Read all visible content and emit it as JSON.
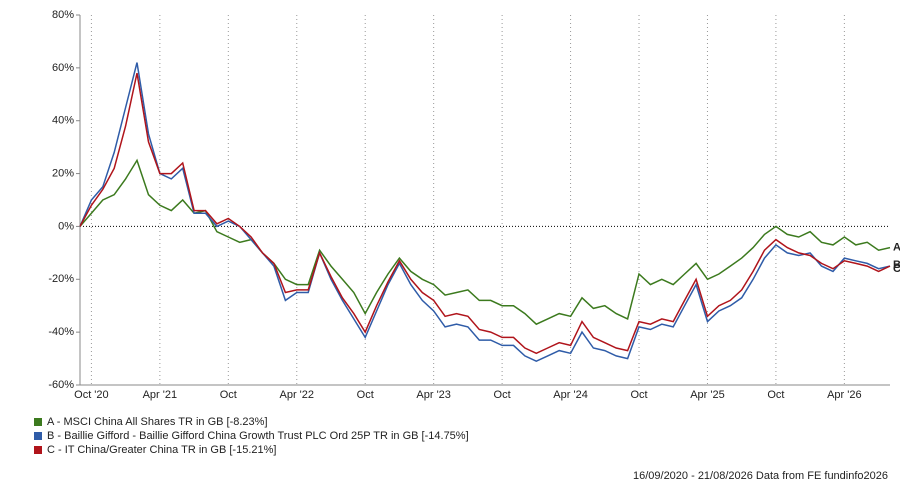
{
  "chart_data": {
    "type": "line",
    "categories": [
      null,
      "Oct '20",
      null,
      null,
      null,
      null,
      null,
      "Apr '21",
      null,
      null,
      null,
      null,
      null,
      "Oct",
      null,
      null,
      null,
      null,
      null,
      "Apr '22",
      null,
      null,
      null,
      null,
      null,
      "Oct",
      null,
      null,
      null,
      null,
      null,
      "Apr '23",
      null,
      null,
      null,
      null,
      null,
      "Oct",
      null,
      null,
      null,
      null,
      null,
      "Apr '24",
      null,
      null,
      null,
      null,
      null,
      "Oct",
      null,
      null,
      null,
      null,
      null,
      "Apr '25",
      null,
      null,
      null,
      null,
      null,
      "Oct",
      null,
      null,
      null,
      null,
      null,
      "Apr '26",
      null,
      null,
      null,
      null
    ],
    "series": [
      {
        "name": "A - MSCI China All Shares TR in GB [-8.23%]",
        "end_label": "A",
        "color": "#3c7a1e",
        "values": [
          0,
          5,
          10,
          12,
          18,
          25,
          12,
          8,
          6,
          10,
          5,
          6,
          -2,
          -4,
          -6,
          -5,
          -10,
          -14,
          -20,
          -22,
          -22,
          -9,
          -15,
          -20,
          -25,
          -33,
          -25,
          -18,
          -12,
          -17,
          -20,
          -22,
          -26,
          -25,
          -24,
          -28,
          -28,
          -30,
          -30,
          -33,
          -37,
          -35,
          -33,
          -34,
          -27,
          -31,
          -30,
          -33,
          -35,
          -18,
          -22,
          -20,
          -22,
          -18,
          -14,
          -20,
          -18,
          -15,
          -12,
          -8,
          -3,
          0,
          -3,
          -4,
          -2,
          -6,
          -7,
          -4,
          -7,
          -6,
          -9,
          -8
        ]
      },
      {
        "name": "B - Baillie Gifford - Baillie Gifford China Growth Trust PLC Ord 25P TR in GB [-14.75%]",
        "end_label": "B",
        "color": "#2f5ca8",
        "values": [
          0,
          10,
          15,
          28,
          45,
          62,
          35,
          20,
          18,
          22,
          5,
          5,
          0,
          2,
          0,
          -5,
          -10,
          -15,
          -28,
          -25,
          -25,
          -10,
          -20,
          -28,
          -35,
          -42,
          -32,
          -22,
          -14,
          -22,
          -28,
          -32,
          -38,
          -37,
          -38,
          -43,
          -43,
          -45,
          -45,
          -49,
          -51,
          -49,
          -47,
          -48,
          -40,
          -46,
          -47,
          -49,
          -50,
          -38,
          -39,
          -37,
          -38,
          -30,
          -22,
          -36,
          -32,
          -30,
          -27,
          -20,
          -12,
          -7,
          -10,
          -11,
          -10,
          -15,
          -17,
          -12,
          -13,
          -14,
          -16,
          -15
        ]
      },
      {
        "name": "C - IT China/Greater China TR in GB [-15.21%]",
        "end_label": "C",
        "color": "#b0141b",
        "values": [
          0,
          8,
          14,
          22,
          38,
          58,
          32,
          20,
          20,
          24,
          6,
          6,
          1,
          3,
          0,
          -4,
          -10,
          -14,
          -25,
          -24,
          -24,
          -10,
          -19,
          -27,
          -33,
          -40,
          -30,
          -21,
          -13,
          -20,
          -25,
          -28,
          -34,
          -33,
          -34,
          -39,
          -40,
          -42,
          -42,
          -46,
          -48,
          -46,
          -44,
          -45,
          -36,
          -42,
          -44,
          -46,
          -47,
          -36,
          -37,
          -35,
          -36,
          -28,
          -20,
          -34,
          -30,
          -28,
          -24,
          -17,
          -9,
          -5,
          -8,
          -10,
          -11,
          -14,
          -16,
          -13,
          -14,
          -15,
          -17,
          -15
        ]
      }
    ],
    "ylim": [
      -60,
      80
    ],
    "yticks": [
      {
        "value": -60,
        "label": "-60%"
      },
      {
        "value": -40,
        "label": "-40%"
      },
      {
        "value": -20,
        "label": "-20%"
      },
      {
        "value": 0,
        "label": "0%"
      },
      {
        "value": 20,
        "label": "20%"
      },
      {
        "value": 40,
        "label": "40%"
      },
      {
        "value": 60,
        "label": "60%"
      },
      {
        "value": 80,
        "label": "80%"
      }
    ],
    "footer": "16/09/2020 - 21/08/2026 Data from FE fundinfo2026"
  }
}
